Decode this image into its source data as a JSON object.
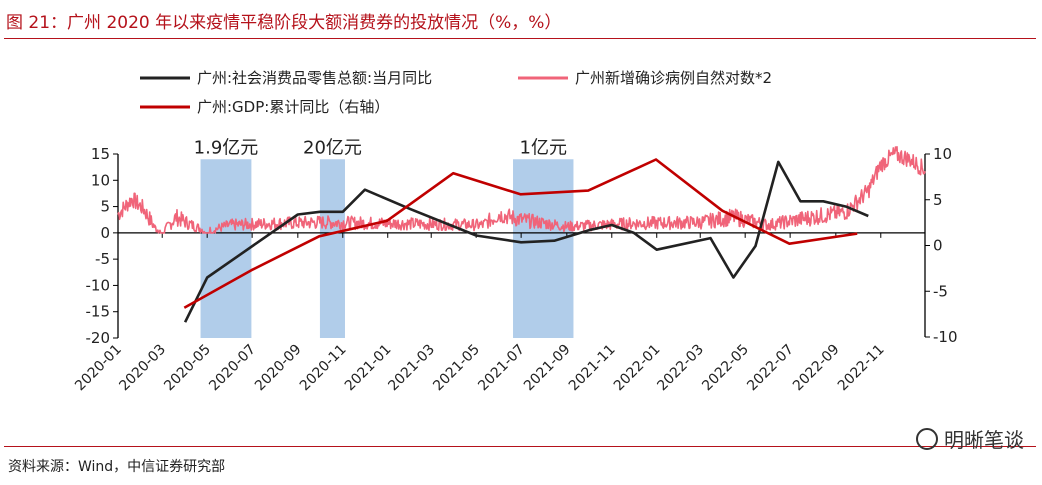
{
  "figure": {
    "title": "图 21：广州 2020 年以来疫情平稳阶段大额消费券的投放情况（%，%）",
    "source": "资料来源：Wind，中信证券研究部",
    "watermark": "明晰笔谈",
    "watermark_icon": "wechat-icon"
  },
  "chart_data": {
    "type": "line",
    "x_tick_labels": [
      "2020-01",
      "2020-03",
      "2020-05",
      "2020-07",
      "2020-09",
      "2020-11",
      "2021-01",
      "2021-03",
      "2021-05",
      "2021-07",
      "2021-09",
      "2021-11",
      "2022-01",
      "2022-03",
      "2022-05",
      "2022-07",
      "2022-09",
      "2022-11"
    ],
    "x_range": [
      "2020-01-01",
      "2022-12-31"
    ],
    "left_axis": {
      "range": [
        -20,
        15
      ],
      "ticks": [
        "15",
        "10",
        "5",
        "0",
        "-5",
        "-10",
        "-15",
        "-20"
      ]
    },
    "right_axis": {
      "range": [
        -10,
        10
      ],
      "ticks": [
        "10",
        "5",
        "0",
        "-5",
        "-10"
      ]
    },
    "legend": [
      "广州:社会消费品零售总额:当月同比",
      "广州新增确诊病例自然对数*2",
      "广州:GDP:累计同比（右轴）"
    ],
    "colors": {
      "retail": "#222222",
      "cases": "#f06479",
      "gdp": "#c00000",
      "band": "#a9c8e8"
    },
    "series": [
      {
        "key": "retail",
        "name": "广州:社会消费品零售总额:当月同比",
        "axis": "left",
        "x": [
          "2020-04-01",
          "2020-05-01",
          "2020-09-01",
          "2020-10-01",
          "2020-11-01",
          "2020-12-01",
          "2021-02-01",
          "2021-05-01",
          "2021-07-01",
          "2021-08-15",
          "2021-10-01",
          "2021-11-01",
          "2021-12-01",
          "2022-01-01",
          "2022-03-15",
          "2022-04-15",
          "2022-05-15",
          "2022-06-15",
          "2022-07-15",
          "2022-08-15",
          "2022-09-15",
          "2022-10-15"
        ],
        "y": [
          -17,
          -8.5,
          3.5,
          4,
          4,
          8.2,
          4.5,
          -0.5,
          -1.8,
          -1.5,
          0.5,
          1.5,
          0,
          -3.2,
          -1,
          -8.5,
          -2.5,
          13.5,
          6,
          6,
          5,
          3.2
        ]
      },
      {
        "key": "gdp",
        "name": "广州:GDP:累计同比（右轴）",
        "axis": "right",
        "x": [
          "2020-03-31",
          "2020-06-30",
          "2020-09-30",
          "2020-12-31",
          "2021-03-31",
          "2021-06-30",
          "2021-09-30",
          "2021-12-31",
          "2022-03-31",
          "2022-06-30",
          "2022-09-30"
        ],
        "y": [
          -6.8,
          -2.7,
          1,
          2.7,
          7.9,
          5.6,
          6,
          9.4,
          3.8,
          0.2,
          1.3
        ]
      }
    ],
    "highlight_bands": [
      {
        "label": "1.9亿元",
        "start": "2020-04-22",
        "end": "2020-06-30",
        "y_range": [
          -20,
          14
        ]
      },
      {
        "label": "20亿元",
        "start": "2020-10-01",
        "end": "2020-11-04",
        "y_range": [
          -20,
          14
        ]
      },
      {
        "label": "1亿元",
        "start": "2021-06-20",
        "end": "2021-09-10",
        "y_range": [
          -20,
          14
        ]
      }
    ],
    "cases_series": {
      "name": "广州新增确诊病例自然对数*2",
      "axis": "left",
      "profile": [
        [
          "2020-01-01",
          3.5
        ],
        [
          "2020-01-20",
          6.5
        ],
        [
          "2020-02-05",
          4.5
        ],
        [
          "2020-02-20",
          1
        ],
        [
          "2020-03-01",
          0
        ],
        [
          "2020-03-20",
          3
        ],
        [
          "2020-04-10",
          1.5
        ],
        [
          "2020-05-01",
          0.3
        ],
        [
          "2020-06-01",
          1.5
        ],
        [
          "2020-08-01",
          1.8
        ],
        [
          "2020-10-01",
          2
        ],
        [
          "2021-01-01",
          1.8
        ],
        [
          "2021-05-10",
          1.5
        ],
        [
          "2021-06-01",
          3.5
        ],
        [
          "2021-07-01",
          2.5
        ],
        [
          "2021-09-01",
          1.2
        ],
        [
          "2021-12-01",
          1.8
        ],
        [
          "2022-03-01",
          2
        ],
        [
          "2022-04-15",
          3
        ],
        [
          "2022-06-01",
          1.5
        ],
        [
          "2022-08-01",
          3
        ],
        [
          "2022-09-15",
          4
        ],
        [
          "2022-10-15",
          8
        ],
        [
          "2022-11-01",
          13
        ],
        [
          "2022-11-20",
          15
        ],
        [
          "2022-12-10",
          14
        ],
        [
          "2022-12-31",
          12
        ]
      ]
    }
  }
}
